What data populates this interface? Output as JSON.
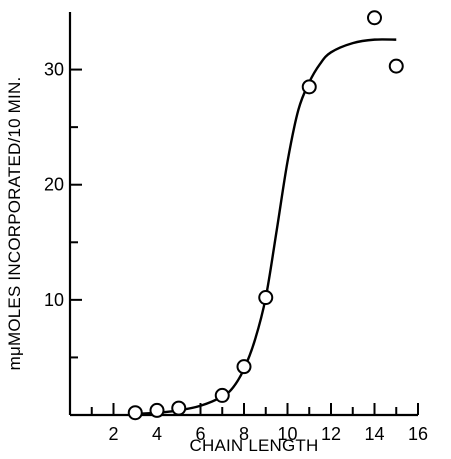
{
  "chart_data": {
    "type": "scatter",
    "title": "",
    "xlabel": "CHAIN LENGTH",
    "ylabel": "mμMOLES INCORPORATED/10 MIN.",
    "xlim": [
      0,
      16
    ],
    "ylim": [
      0,
      35
    ],
    "x_ticks": [
      2,
      4,
      6,
      8,
      10,
      12,
      14,
      16
    ],
    "x_ticks_minor": [
      1,
      3,
      5,
      7,
      9,
      11,
      13,
      15
    ],
    "y_ticks": [
      10,
      20,
      30
    ],
    "y_ticks_minor": [
      5,
      15,
      25
    ],
    "grid": false,
    "series": [
      {
        "type": "scatter",
        "marker": "open-circle",
        "x": [
          3,
          4,
          5,
          7,
          8,
          9,
          11,
          14,
          15
        ],
        "y": [
          0.2,
          0.4,
          0.6,
          1.7,
          4.2,
          10.2,
          28.5,
          34.5,
          30.3
        ]
      }
    ],
    "fit_curve": {
      "type": "line",
      "x": [
        3,
        4,
        5,
        6,
        7,
        7.5,
        8,
        8.5,
        9,
        9.5,
        10,
        10.5,
        11,
        11.5,
        12,
        13,
        14,
        15
      ],
      "y": [
        0.1,
        0.2,
        0.4,
        0.8,
        1.6,
        2.4,
        4.0,
        6.5,
        10.2,
        16.0,
        22.0,
        26.5,
        28.9,
        30.5,
        31.5,
        32.3,
        32.6,
        32.6
      ]
    }
  }
}
